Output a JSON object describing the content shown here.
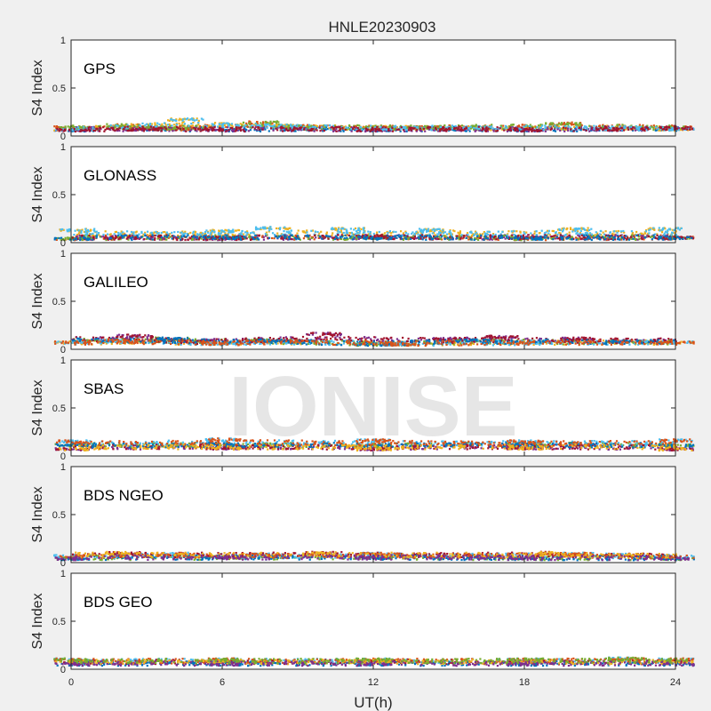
{
  "figure": {
    "title": "HNLE20230903",
    "xlabel": "UT(h)",
    "watermark": "IONISE",
    "colors": [
      "#0072bd",
      "#d95319",
      "#edb120",
      "#7e2f8e",
      "#77ac30",
      "#4dbeee",
      "#a2142f"
    ]
  },
  "chart_data": [
    {
      "type": "scatter",
      "panel_label": "GPS",
      "ylabel": "S4 Index",
      "xlim": [
        0,
        24
      ],
      "ylim": [
        0,
        1
      ],
      "xticks": [
        "0",
        "6",
        "12",
        "18",
        "24"
      ],
      "yticks": [
        "0",
        "0.5",
        "1"
      ],
      "baseline_s4": 0.09,
      "series": [
        {
          "values": [
            [
              0,
              0.07
            ],
            [
              3,
              0.08
            ],
            [
              6,
              0.07
            ],
            [
              9,
              0.08
            ],
            [
              12,
              0.07
            ],
            [
              15,
              0.08
            ],
            [
              18,
              0.07
            ],
            [
              21,
              0.08
            ],
            [
              24,
              0.09
            ]
          ]
        },
        {
          "values": [
            [
              0,
              0.1
            ],
            [
              2,
              0.12
            ],
            [
              4,
              0.09
            ],
            [
              7.5,
              0.15
            ],
            [
              9,
              0.11
            ],
            [
              14,
              0.1
            ],
            [
              19.5,
              0.14
            ],
            [
              24,
              0.1
            ]
          ]
        },
        {
          "values": [
            [
              0,
              0.08
            ],
            [
              4.5,
              0.18
            ],
            [
              8,
              0.12
            ],
            [
              13,
              0.09
            ],
            [
              16,
              0.1
            ],
            [
              22,
              0.09
            ],
            [
              24,
              0.08
            ]
          ]
        }
      ]
    },
    {
      "type": "scatter",
      "panel_label": "GLONASS",
      "ylabel": "S4 Index",
      "xlim": [
        0,
        24
      ],
      "ylim": [
        0,
        1
      ],
      "xticks": [
        "0",
        "6",
        "12",
        "18",
        "24"
      ],
      "yticks": [
        "0",
        "0.5",
        "1"
      ],
      "baseline_s4": 0.07,
      "series": [
        {
          "values": [
            [
              0,
              0.05
            ],
            [
              6,
              0.06
            ],
            [
              12,
              0.06
            ],
            [
              18,
              0.05
            ],
            [
              24,
              0.06
            ]
          ]
        },
        {
          "values": [
            [
              0.2,
              0.14
            ],
            [
              6,
              0.13
            ],
            [
              8,
              0.16
            ],
            [
              11,
              0.15
            ],
            [
              14.5,
              0.14
            ],
            [
              20,
              0.15
            ],
            [
              23.5,
              0.15
            ]
          ]
        },
        {
          "values": [
            [
              2,
              0.06
            ],
            [
              6,
              0.05
            ],
            [
              12,
              0.07
            ],
            [
              18,
              0.06
            ],
            [
              24,
              0.06
            ]
          ]
        }
      ]
    },
    {
      "type": "scatter",
      "panel_label": "GALILEO",
      "ylabel": "S4 Index",
      "xlim": [
        0,
        24
      ],
      "ylim": [
        0,
        1
      ],
      "xticks": [
        "0",
        "6",
        "12",
        "18",
        "24"
      ],
      "yticks": [
        "0",
        "0.5",
        "1"
      ],
      "baseline_s4": 0.08,
      "series": [
        {
          "values": [
            [
              0,
              0.08
            ],
            [
              2,
              0.1
            ],
            [
              6,
              0.07
            ],
            [
              9,
              0.09
            ],
            [
              13,
              0.06
            ],
            [
              18,
              0.08
            ],
            [
              24,
              0.08
            ]
          ]
        },
        {
          "values": [
            [
              2.5,
              0.15
            ],
            [
              5,
              0.1
            ],
            [
              10,
              0.17
            ],
            [
              15,
              0.12
            ],
            [
              17,
              0.14
            ],
            [
              20,
              0.12
            ]
          ]
        },
        {
          "values": [
            [
              4,
              0.12
            ],
            [
              8,
              0.1
            ],
            [
              12,
              0.06
            ],
            [
              16,
              0.1
            ],
            [
              22,
              0.09
            ]
          ]
        }
      ]
    },
    {
      "type": "scatter",
      "panel_label": "SBAS",
      "ylabel": "S4 Index",
      "xlim": [
        0,
        24
      ],
      "ylim": [
        0,
        1
      ],
      "xticks": [
        "0",
        "6",
        "12",
        "18",
        "24"
      ],
      "yticks": [
        "0",
        "0.5",
        "1"
      ],
      "baseline_s4": 0.12,
      "series": [
        {
          "values": [
            [
              0,
              0.08
            ],
            [
              6,
              0.09
            ],
            [
              12,
              0.08
            ],
            [
              18,
              0.09
            ],
            [
              24,
              0.08
            ]
          ]
        },
        {
          "values": [
            [
              0,
              0.12
            ],
            [
              6,
              0.13
            ],
            [
              12,
              0.12
            ],
            [
              18,
              0.13
            ],
            [
              24,
              0.12
            ]
          ]
        },
        {
          "values": [
            [
              0,
              0.16
            ],
            [
              6,
              0.18
            ],
            [
              12,
              0.17
            ],
            [
              18,
              0.16
            ],
            [
              24,
              0.17
            ]
          ]
        }
      ]
    },
    {
      "type": "scatter",
      "panel_label": "BDS NGEO",
      "ylabel": "S4 Index",
      "xlim": [
        0,
        24
      ],
      "ylim": [
        0,
        1
      ],
      "xticks": [
        "0",
        "6",
        "12",
        "18",
        "24"
      ],
      "yticks": [
        "0",
        "0.5",
        "1"
      ],
      "baseline_s4": 0.07,
      "series": [
        {
          "values": [
            [
              0,
              0.05
            ],
            [
              6,
              0.06
            ],
            [
              12,
              0.06
            ],
            [
              18,
              0.05
            ],
            [
              24,
              0.05
            ]
          ]
        },
        {
          "values": [
            [
              0,
              0.08
            ],
            [
              4,
              0.1
            ],
            [
              8,
              0.09
            ],
            [
              12,
              0.1
            ],
            [
              16,
              0.09
            ],
            [
              20,
              0.1
            ],
            [
              24,
              0.07
            ]
          ]
        },
        {
          "values": [
            [
              2,
              0.11
            ],
            [
              10,
              0.11
            ],
            [
              19,
              0.11
            ],
            [
              22,
              0.09
            ]
          ]
        }
      ]
    },
    {
      "type": "scatter",
      "panel_label": "BDS GEO",
      "ylabel": "S4 Index",
      "xlim": [
        0,
        24
      ],
      "ylim": [
        0,
        1
      ],
      "xticks": [
        "0",
        "6",
        "12",
        "18",
        "24"
      ],
      "yticks": [
        "0",
        "0.5",
        "1"
      ],
      "baseline_s4": 0.08,
      "series": [
        {
          "values": [
            [
              0,
              0.11
            ],
            [
              6,
              0.11
            ],
            [
              12,
              0.11
            ],
            [
              18,
              0.11
            ],
            [
              22,
              0.12
            ],
            [
              24,
              0.11
            ]
          ]
        },
        {
          "values": [
            [
              0,
              0.09
            ],
            [
              6,
              0.09
            ],
            [
              12,
              0.1
            ],
            [
              18,
              0.09
            ],
            [
              24,
              0.09
            ]
          ]
        },
        {
          "values": [
            [
              0,
              0.06
            ],
            [
              6,
              0.06
            ],
            [
              12,
              0.06
            ],
            [
              18,
              0.06
            ],
            [
              24,
              0.06
            ]
          ]
        }
      ]
    }
  ]
}
